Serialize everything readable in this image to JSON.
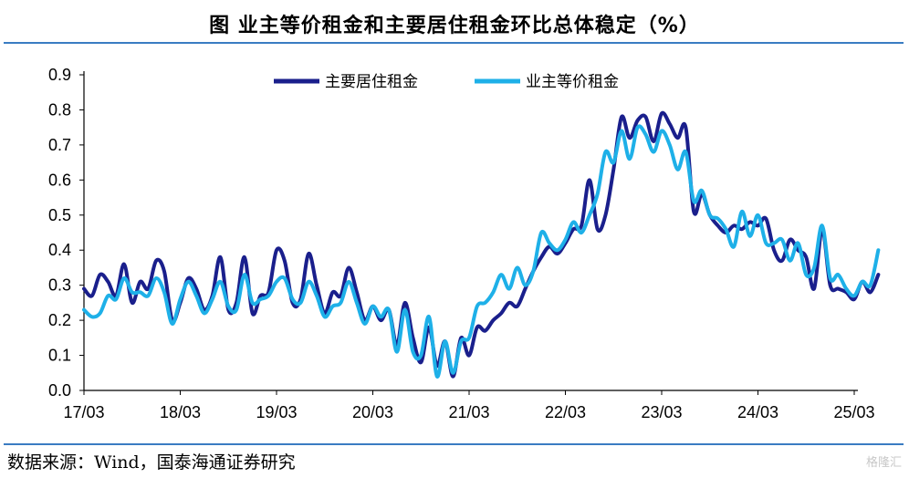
{
  "title": "图    业主等价租金和主要居住租金环比总体稳定（%）",
  "source": "数据来源：Wind，国泰海通证券研究",
  "watermark": "格隆汇",
  "chart_data": {
    "type": "line",
    "title": "图    业主等价租金和主要居住租金环比总体稳定（%）",
    "xlabel": "",
    "ylabel": "",
    "ylim": [
      0,
      0.9
    ],
    "yticks": [
      "0.0",
      "0.1",
      "0.2",
      "0.3",
      "0.4",
      "0.5",
      "0.6",
      "0.7",
      "0.8",
      "0.9"
    ],
    "x_start": "2017-03",
    "x_ticks": [
      "17/03",
      "18/03",
      "19/03",
      "20/03",
      "21/03",
      "22/03",
      "23/03",
      "24/03",
      "25/03"
    ],
    "legend_position": "top",
    "grid": false,
    "series": [
      {
        "name": "主要居住租金",
        "color": "#1a1f8c",
        "values": [
          0.29,
          0.27,
          0.33,
          0.31,
          0.27,
          0.36,
          0.25,
          0.31,
          0.29,
          0.37,
          0.34,
          0.2,
          0.25,
          0.32,
          0.29,
          0.23,
          0.27,
          0.38,
          0.23,
          0.25,
          0.38,
          0.22,
          0.27,
          0.28,
          0.4,
          0.37,
          0.25,
          0.26,
          0.39,
          0.3,
          0.22,
          0.28,
          0.27,
          0.35,
          0.28,
          0.2,
          0.24,
          0.2,
          0.23,
          0.13,
          0.25,
          0.15,
          0.08,
          0.18,
          0.07,
          0.14,
          0.04,
          0.15,
          0.1,
          0.18,
          0.17,
          0.2,
          0.22,
          0.25,
          0.24,
          0.29,
          0.34,
          0.38,
          0.41,
          0.39,
          0.42,
          0.46,
          0.47,
          0.6,
          0.46,
          0.5,
          0.63,
          0.78,
          0.72,
          0.77,
          0.78,
          0.71,
          0.79,
          0.76,
          0.72,
          0.75,
          0.51,
          0.56,
          0.5,
          0.47,
          0.45,
          0.47,
          0.46,
          0.48,
          0.47,
          0.49,
          0.4,
          0.37,
          0.43,
          0.4,
          0.38,
          0.29,
          0.46,
          0.3,
          0.29,
          0.28,
          0.26,
          0.31,
          0.28,
          0.33
        ]
      },
      {
        "name": "业主等价租金",
        "color": "#1eb0e8",
        "values": [
          0.23,
          0.21,
          0.22,
          0.27,
          0.26,
          0.32,
          0.28,
          0.28,
          0.27,
          0.32,
          0.28,
          0.19,
          0.26,
          0.31,
          0.27,
          0.22,
          0.26,
          0.31,
          0.24,
          0.23,
          0.33,
          0.25,
          0.26,
          0.27,
          0.31,
          0.32,
          0.26,
          0.25,
          0.31,
          0.27,
          0.21,
          0.24,
          0.25,
          0.31,
          0.25,
          0.19,
          0.24,
          0.21,
          0.23,
          0.11,
          0.23,
          0.11,
          0.1,
          0.21,
          0.04,
          0.14,
          0.05,
          0.14,
          0.15,
          0.24,
          0.25,
          0.28,
          0.33,
          0.29,
          0.35,
          0.3,
          0.34,
          0.45,
          0.42,
          0.4,
          0.43,
          0.48,
          0.45,
          0.5,
          0.56,
          0.68,
          0.65,
          0.74,
          0.66,
          0.75,
          0.73,
          0.68,
          0.74,
          0.7,
          0.63,
          0.68,
          0.54,
          0.57,
          0.5,
          0.49,
          0.46,
          0.41,
          0.51,
          0.44,
          0.5,
          0.42,
          0.42,
          0.43,
          0.37,
          0.42,
          0.33,
          0.35,
          0.47,
          0.32,
          0.33,
          0.29,
          0.27,
          0.31,
          0.3,
          0.4
        ]
      }
    ]
  }
}
